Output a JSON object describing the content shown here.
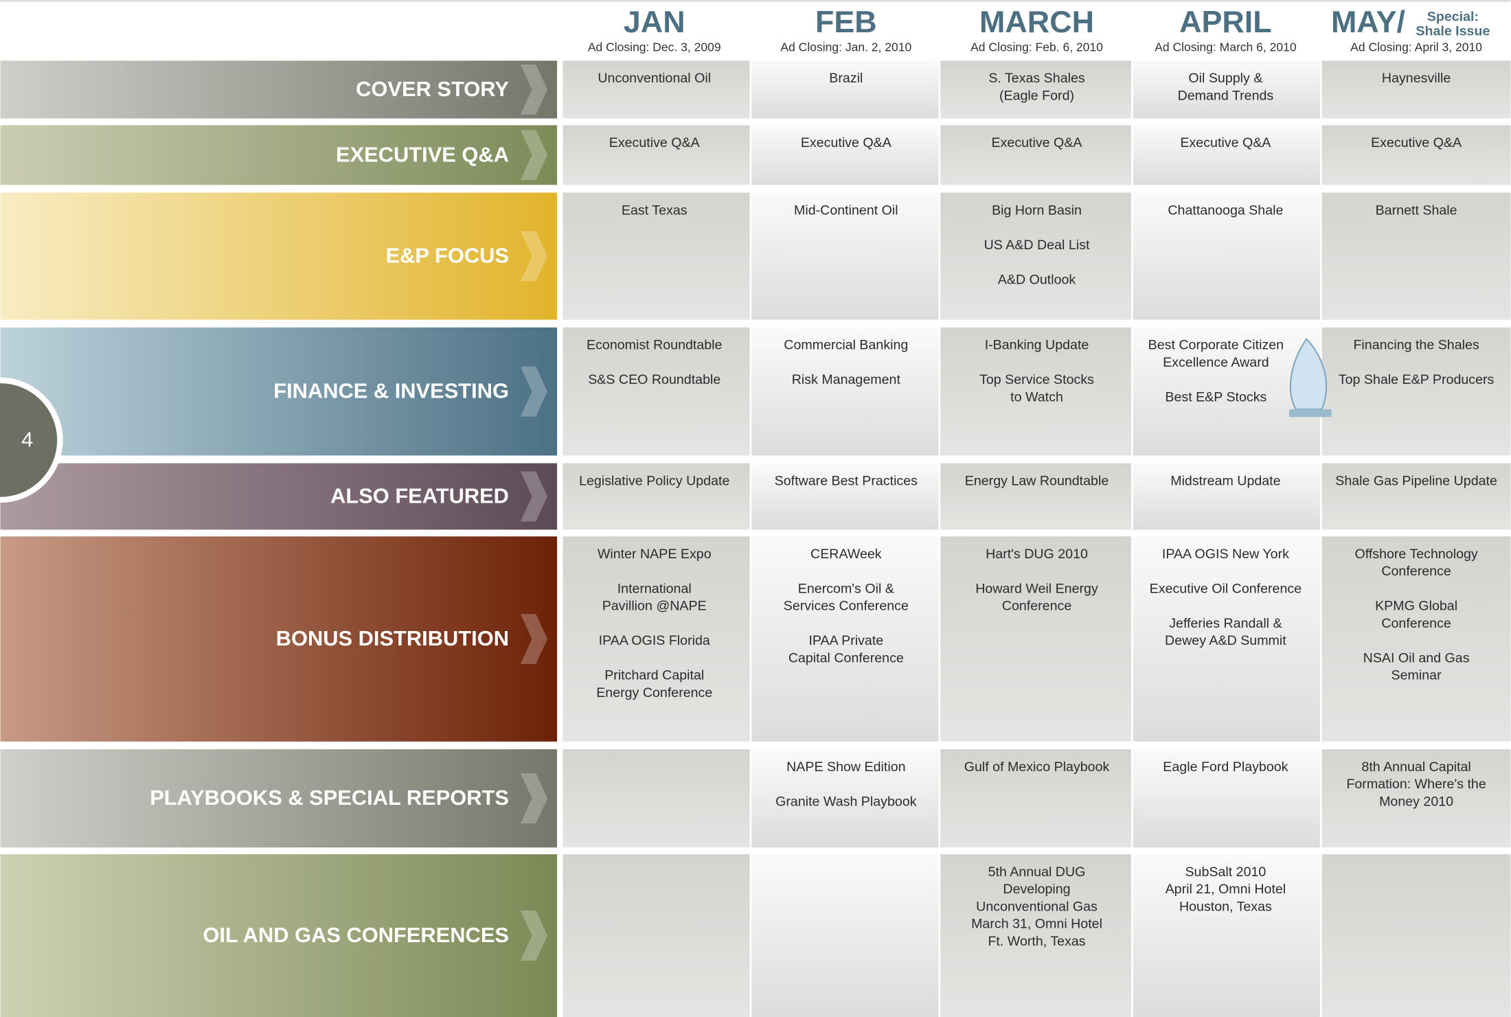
{
  "page_number": "4",
  "columns": [
    {
      "month": "JAN",
      "closing": "Ad Closing: Dec. 3, 2009"
    },
    {
      "month": "FEB",
      "closing": "Ad Closing: Jan. 2, 2010"
    },
    {
      "month": "MARCH",
      "closing": "Ad Closing: Feb. 6, 2010"
    },
    {
      "month": "APRIL",
      "closing": "Ad Closing: March 6, 2010"
    },
    {
      "month": "MAY/",
      "special": [
        "Special:",
        "Shale Issue"
      ],
      "closing": "Ad Closing: April 3, 2010"
    }
  ],
  "rows": [
    {
      "label": "COVER STORY",
      "cells": [
        [
          [
            "Unconventional Oil"
          ]
        ],
        [
          [
            "Brazil"
          ]
        ],
        [
          [
            "S. Texas Shales",
            "(Eagle Ford)"
          ]
        ],
        [
          [
            "Oil Supply &",
            "Demand Trends"
          ]
        ],
        [
          [
            "Haynesville"
          ]
        ]
      ]
    },
    {
      "label": "EXECUTIVE Q&A",
      "cells": [
        [
          [
            "Executive Q&A"
          ]
        ],
        [
          [
            "Executive Q&A"
          ]
        ],
        [
          [
            "Executive Q&A"
          ]
        ],
        [
          [
            "Executive Q&A"
          ]
        ],
        [
          [
            "Executive Q&A"
          ]
        ]
      ]
    },
    {
      "label": "E&P FOCUS",
      "cells": [
        [
          [
            "East  Texas"
          ]
        ],
        [
          [
            "Mid-Continent Oil"
          ]
        ],
        [
          [
            "Big Horn Basin"
          ],
          [
            "US A&D Deal List"
          ],
          [
            "A&D Outlook"
          ]
        ],
        [
          [
            "Chattanooga Shale"
          ]
        ],
        [
          [
            "Barnett Shale"
          ]
        ]
      ]
    },
    {
      "label": "FINANCE & INVESTING",
      "cells": [
        [
          [
            "Economist Roundtable"
          ],
          [
            "S&S CEO Roundtable"
          ]
        ],
        [
          [
            "Commercial Banking"
          ],
          [
            "Risk Management"
          ]
        ],
        [
          [
            "I-Banking Update"
          ],
          [
            "Top Service Stocks",
            "to Watch"
          ]
        ],
        [
          [
            "Best Corporate Citizen",
            "Excellence Award"
          ],
          [
            "Best E&P Stocks"
          ]
        ],
        [
          [
            "Financing the Shales"
          ],
          [
            "Top Shale E&P Producers"
          ]
        ]
      ]
    },
    {
      "label": "ALSO FEATURED",
      "cells": [
        [
          [
            "Legislative Policy Update"
          ]
        ],
        [
          [
            "Software Best Practices"
          ]
        ],
        [
          [
            "Energy Law Roundtable"
          ]
        ],
        [
          [
            "Midstream Update"
          ]
        ],
        [
          [
            "Shale Gas Pipeline Update"
          ]
        ]
      ]
    },
    {
      "label": "BONUS DISTRIBUTION",
      "cells": [
        [
          [
            "Winter NAPE Expo"
          ],
          [
            "International",
            "Pavillion @NAPE"
          ],
          [
            "IPAA OGIS Florida"
          ],
          [
            "Pritchard Capital",
            "Energy Conference"
          ]
        ],
        [
          [
            "CERAWeek"
          ],
          [
            "Enercom's Oil &",
            "Services Conference"
          ],
          [
            "IPAA Private",
            "Capital Conference"
          ]
        ],
        [
          [
            "Hart's DUG 2010"
          ],
          [
            "Howard Weil Energy",
            "Conference"
          ]
        ],
        [
          [
            "IPAA OGIS New York"
          ],
          [
            "Executive Oil Conference"
          ],
          [
            "Jefferies Randall &",
            "Dewey A&D Summit"
          ]
        ],
        [
          [
            "Offshore Technology",
            "Conference"
          ],
          [
            "KPMG Global",
            "Conference"
          ],
          [
            "NSAI Oil and Gas",
            "Seminar"
          ]
        ]
      ]
    },
    {
      "label": "PLAYBOOKS & SPECIAL REPORTS",
      "cells": [
        [],
        [
          [
            "NAPE Show Edition"
          ],
          [
            "Granite Wash Playbook"
          ]
        ],
        [
          [
            "Gulf of Mexico Playbook"
          ]
        ],
        [
          [
            "Eagle Ford Playbook"
          ]
        ],
        [
          [
            "8th Annual Capital",
            "Formation: Where's the",
            "Money 2010"
          ]
        ]
      ]
    },
    {
      "label": "OIL AND GAS CONFERENCES",
      "cells": [
        [],
        [],
        [
          [
            "5th Annual DUG",
            "Developing",
            "Unconventional Gas",
            "March 31, Omni Hotel",
            "Ft. Worth, Texas"
          ]
        ],
        [
          [
            "SubSalt 2010",
            "April 21, Omni Hotel",
            "Houston, Texas"
          ]
        ],
        []
      ]
    }
  ]
}
